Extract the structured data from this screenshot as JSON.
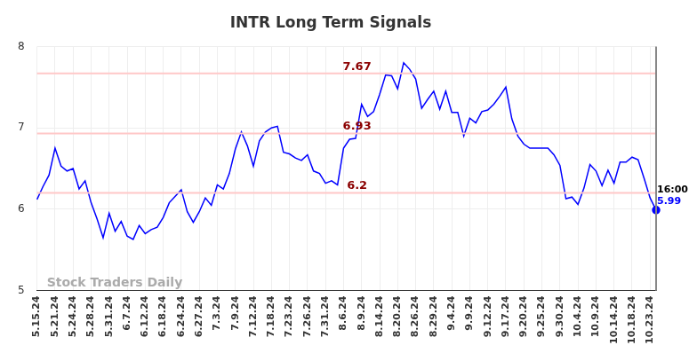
{
  "chart_data": {
    "type": "line",
    "title": "INTR Long Term Signals",
    "categories": [
      "5.15.24",
      null,
      null,
      "5.21.24",
      null,
      null,
      "5.24.24",
      null,
      null,
      "5.28.24",
      null,
      null,
      "5.31.24",
      null,
      null,
      "6.7.24",
      null,
      null,
      "6.12.24",
      null,
      null,
      "6.18.24",
      null,
      null,
      "6.24.24",
      null,
      null,
      "6.27.24",
      null,
      null,
      "7.3.24",
      null,
      null,
      "7.9.24",
      null,
      null,
      "7.12.24",
      null,
      null,
      "7.18.24",
      null,
      null,
      "7.23.24",
      null,
      null,
      "7.26.24",
      null,
      null,
      "7.31.24",
      null,
      null,
      "8.6.24",
      null,
      null,
      "8.9.24",
      null,
      null,
      "8.14.24",
      null,
      null,
      "8.20.24",
      null,
      null,
      "8.26.24",
      null,
      null,
      "8.29.24",
      null,
      null,
      "9.4.24",
      null,
      null,
      "9.9.24",
      null,
      null,
      "9.12.24",
      null,
      null,
      "9.17.24",
      null,
      null,
      "9.20.24",
      null,
      null,
      "9.25.24",
      null,
      null,
      "9.30.24",
      null,
      null,
      "10.4.24",
      null,
      null,
      "10.9.24",
      null,
      null,
      "10.14.24",
      null,
      null,
      "10.18.24",
      null,
      null,
      "10.23.24",
      null
    ],
    "values": [
      6.12,
      6.28,
      6.42,
      6.75,
      6.53,
      6.47,
      6.5,
      6.25,
      6.35,
      6.08,
      5.88,
      5.65,
      5.95,
      5.73,
      5.85,
      5.67,
      5.63,
      5.8,
      5.7,
      5.75,
      5.78,
      5.9,
      6.08,
      6.16,
      6.24,
      5.97,
      5.84,
      5.97,
      6.14,
      6.05,
      6.3,
      6.25,
      6.44,
      6.74,
      6.95,
      6.78,
      6.53,
      6.84,
      6.95,
      7.0,
      7.02,
      6.7,
      6.68,
      6.63,
      6.6,
      6.67,
      6.47,
      6.44,
      6.32,
      6.35,
      6.3,
      6.75,
      6.86,
      6.87,
      7.29,
      7.14,
      7.2,
      7.41,
      7.65,
      7.64,
      7.48,
      7.8,
      7.72,
      7.6,
      7.24,
      7.35,
      7.45,
      7.23,
      7.45,
      7.19,
      7.19,
      6.9,
      7.12,
      7.06,
      7.2,
      7.22,
      7.29,
      7.39,
      7.5,
      7.11,
      6.9,
      6.8,
      6.75,
      6.75,
      6.75,
      6.75,
      6.67,
      6.54,
      6.13,
      6.15,
      6.06,
      6.26,
      6.55,
      6.47,
      6.29,
      6.48,
      6.32,
      6.58,
      6.58,
      6.64,
      6.61,
      6.38,
      6.14,
      5.99
    ],
    "color": "#0000ff",
    "ylim": [
      5,
      8
    ],
    "yticks": [
      5,
      6,
      7,
      8
    ],
    "grid": true,
    "annotations": {
      "levels": [
        7.67,
        6.93,
        6.2
      ],
      "last_time": "16:00",
      "watermark": "Stock Traders Daily"
    }
  }
}
